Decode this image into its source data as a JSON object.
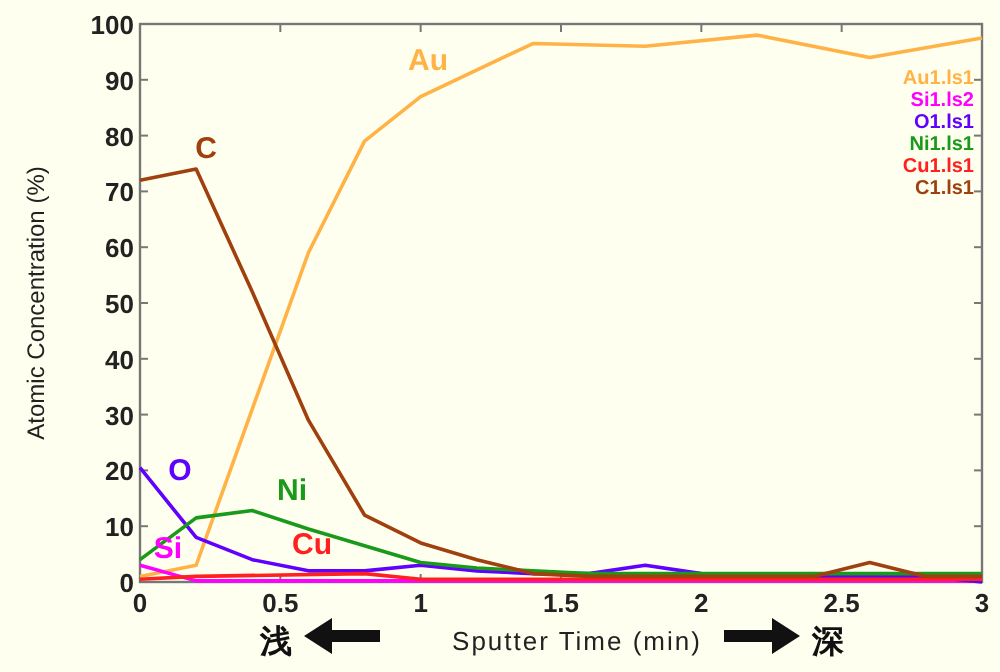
{
  "chart_data": {
    "type": "line",
    "xlabel": "Sputter Time (min)",
    "ylabel": "Atomic Concentration (%)",
    "xlim": [
      0,
      3
    ],
    "ylim": [
      0,
      100
    ],
    "xticks": [
      0,
      0.5,
      1,
      1.5,
      2,
      2.5,
      3
    ],
    "yticks": [
      0,
      10,
      20,
      30,
      40,
      50,
      60,
      70,
      80,
      90,
      100
    ],
    "grid": false,
    "legend": "top right",
    "marker": "none",
    "line_style": "solid",
    "series": [
      {
        "name": "Au1.ls1",
        "color": "#ffb347",
        "x": [
          0,
          0.2,
          0.6,
          0.8,
          1.0,
          1.4,
          1.8,
          2.2,
          2.6,
          3.0
        ],
        "values": [
          1,
          3,
          59,
          79,
          87,
          96.5,
          96,
          98,
          94,
          97.5
        ]
      },
      {
        "name": "Si1.ls2",
        "color": "#ff00ff",
        "x": [
          0,
          0.2,
          3.0
        ],
        "values": [
          3,
          0.2,
          0.2
        ]
      },
      {
        "name": "O1.ls1",
        "color": "#6000ff",
        "x": [
          0,
          0.2,
          0.4,
          0.6,
          0.8,
          1.0,
          1.2,
          1.4,
          1.6,
          1.8,
          2.0,
          2.4,
          2.8,
          3.0
        ],
        "values": [
          20.5,
          8,
          4,
          2,
          2,
          3,
          2,
          1.5,
          1.5,
          3,
          1.5,
          1,
          1,
          0
        ]
      },
      {
        "name": "Ni1.ls1",
        "color": "#1a9a1a",
        "x": [
          0,
          0.2,
          0.4,
          0.6,
          0.8,
          1.0,
          1.2,
          1.4,
          1.6,
          2.0,
          2.4,
          3.0
        ],
        "values": [
          4,
          11.5,
          12.8,
          9.5,
          6.5,
          3.5,
          2.5,
          2,
          1.5,
          1.5,
          1.5,
          1.5
        ]
      },
      {
        "name": "Cu1.ls1",
        "color": "#ff2020",
        "x": [
          0,
          0.2,
          0.8,
          1.0,
          3.0
        ],
        "values": [
          0.5,
          1,
          1.5,
          0.5,
          0.5
        ]
      },
      {
        "name": "C1.ls1",
        "color": "#a0400f",
        "x": [
          0,
          0.2,
          0.4,
          0.6,
          0.8,
          1.0,
          1.2,
          1.4,
          1.6,
          2.4,
          2.6,
          2.8,
          3.0
        ],
        "values": [
          72,
          74,
          52,
          29,
          12,
          7,
          4,
          1.5,
          1,
          1,
          3.5,
          1,
          1
        ]
      }
    ],
    "annotations": [
      "Au",
      "C",
      "O",
      "Ni",
      "Si",
      "Cu",
      "浅",
      "深"
    ]
  }
}
